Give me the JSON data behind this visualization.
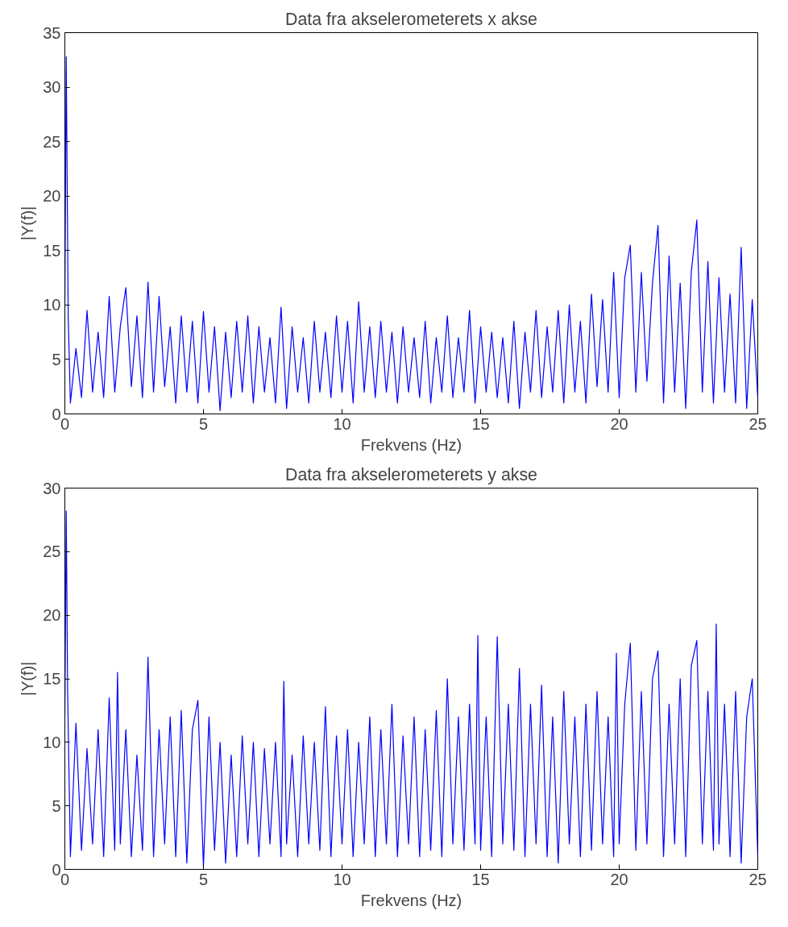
{
  "chart_data": [
    {
      "type": "line",
      "title": "Data fra akselerometerets x akse",
      "xlabel": "Frekvens (Hz)",
      "ylabel": "|Y(f)|",
      "xlim": [
        0,
        25
      ],
      "ylim": [
        0,
        35
      ],
      "xticks": [
        0,
        5,
        10,
        15,
        20,
        25
      ],
      "yticks": [
        0,
        5,
        10,
        15,
        20,
        25,
        30,
        35
      ],
      "series": [
        {
          "color": "#0000ff",
          "x": [
            0,
            0.05,
            0.12,
            0.2,
            0.4,
            0.6,
            0.8,
            1.0,
            1.2,
            1.4,
            1.6,
            1.8,
            2.0,
            2.2,
            2.4,
            2.6,
            2.8,
            3.0,
            3.2,
            3.4,
            3.6,
            3.8,
            4.0,
            4.2,
            4.4,
            4.6,
            4.8,
            5.0,
            5.2,
            5.4,
            5.6,
            5.8,
            6.0,
            6.2,
            6.4,
            6.6,
            6.8,
            7.0,
            7.2,
            7.4,
            7.6,
            7.8,
            8.0,
            8.2,
            8.4,
            8.6,
            8.8,
            9.0,
            9.2,
            9.4,
            9.6,
            9.8,
            10.0,
            10.2,
            10.4,
            10.6,
            10.8,
            11.0,
            11.2,
            11.4,
            11.6,
            11.8,
            12.0,
            12.2,
            12.4,
            12.6,
            12.8,
            13.0,
            13.2,
            13.4,
            13.6,
            13.8,
            14.0,
            14.2,
            14.4,
            14.6,
            14.8,
            15.0,
            15.2,
            15.4,
            15.6,
            15.8,
            16.0,
            16.2,
            16.4,
            16.6,
            16.8,
            17.0,
            17.2,
            17.4,
            17.6,
            17.8,
            18.0,
            18.2,
            18.4,
            18.6,
            18.8,
            19.0,
            19.2,
            19.4,
            19.6,
            19.8,
            20.0,
            20.2,
            20.4,
            20.6,
            20.8,
            21.0,
            21.2,
            21.4,
            21.6,
            21.8,
            22.0,
            22.2,
            22.4,
            22.6,
            22.8,
            23.0,
            23.2,
            23.4,
            23.6,
            23.8,
            24.0,
            24.2,
            24.4,
            24.6,
            24.8,
            25.0
          ],
          "values": [
            10,
            32.8,
            9,
            1,
            6,
            1.5,
            9.5,
            2,
            7.5,
            1.5,
            10.8,
            2,
            8,
            11.6,
            2.5,
            9,
            1.5,
            12.1,
            2,
            10.8,
            2.5,
            8,
            1,
            9,
            2,
            8.5,
            1,
            9.4,
            2,
            8,
            0.3,
            7.5,
            1.5,
            8.5,
            2,
            9,
            1,
            8,
            2,
            7,
            1,
            9.8,
            0.5,
            8,
            2,
            7,
            1,
            8.5,
            2,
            7.5,
            1.5,
            9,
            2,
            8.5,
            1,
            10.3,
            2,
            8,
            1.5,
            8.5,
            2,
            7.5,
            1,
            8,
            2,
            7,
            1.5,
            8.5,
            1,
            7,
            2,
            9,
            1.5,
            7,
            2,
            9.5,
            1,
            8,
            2,
            7.5,
            1.5,
            7,
            1,
            8.5,
            0.5,
            7.5,
            2,
            9.5,
            1.5,
            8,
            2,
            9.5,
            1,
            10,
            2,
            8.5,
            1,
            11,
            2.5,
            10.5,
            2,
            13,
            1.5,
            12.5,
            15.5,
            2,
            13,
            3,
            12,
            17.3,
            1,
            14.5,
            2,
            12,
            0.5,
            13,
            17.8,
            2,
            14,
            1,
            12.5,
            2,
            11,
            1,
            15.3,
            0.5,
            10.5,
            1.5
          ]
        }
      ]
    },
    {
      "type": "line",
      "title": "Data fra akselerometerets y akse",
      "xlabel": "Frekvens (Hz)",
      "ylabel": "|Y(f)|",
      "xlim": [
        0,
        25
      ],
      "ylim": [
        0,
        30
      ],
      "xticks": [
        0,
        5,
        10,
        15,
        20,
        25
      ],
      "yticks": [
        0,
        5,
        10,
        15,
        20,
        25,
        30
      ],
      "series": [
        {
          "color": "#0000ff",
          "x": [
            0,
            0.05,
            0.1,
            0.2,
            0.4,
            0.6,
            0.8,
            1.0,
            1.2,
            1.4,
            1.6,
            1.8,
            1.9,
            2.0,
            2.2,
            2.4,
            2.6,
            2.8,
            3.0,
            3.2,
            3.4,
            3.6,
            3.8,
            4.0,
            4.2,
            4.4,
            4.6,
            4.8,
            5.0,
            5.2,
            5.4,
            5.6,
            5.8,
            6.0,
            6.2,
            6.4,
            6.6,
            6.8,
            7.0,
            7.2,
            7.4,
            7.6,
            7.8,
            7.9,
            8.0,
            8.2,
            8.4,
            8.6,
            8.8,
            9.0,
            9.2,
            9.4,
            9.6,
            9.8,
            10.0,
            10.2,
            10.4,
            10.6,
            10.8,
            11.0,
            11.2,
            11.4,
            11.6,
            11.8,
            12.0,
            12.2,
            12.4,
            12.6,
            12.8,
            13.0,
            13.2,
            13.4,
            13.6,
            13.8,
            14.0,
            14.2,
            14.4,
            14.6,
            14.8,
            14.9,
            15.0,
            15.2,
            15.4,
            15.6,
            15.8,
            16.0,
            16.2,
            16.4,
            16.6,
            16.8,
            17.0,
            17.2,
            17.4,
            17.6,
            17.8,
            18.0,
            18.2,
            18.4,
            18.6,
            18.8,
            19.0,
            19.2,
            19.4,
            19.6,
            19.8,
            19.9,
            20.0,
            20.2,
            20.4,
            20.6,
            20.8,
            21.0,
            21.2,
            21.4,
            21.6,
            21.8,
            22.0,
            22.2,
            22.4,
            22.6,
            22.8,
            23.0,
            23.2,
            23.4,
            23.5,
            23.6,
            23.8,
            24.0,
            24.2,
            24.4,
            24.6,
            24.8,
            25.0
          ],
          "values": [
            12,
            28.2,
            14,
            1,
            11.5,
            1.5,
            9.5,
            2,
            11,
            1,
            13.5,
            1.5,
            15.5,
            2,
            11,
            1,
            9,
            1.5,
            16.7,
            1,
            11,
            2,
            12,
            1,
            12.5,
            0.5,
            11,
            13.3,
            0.2,
            12,
            1.5,
            10,
            0.5,
            9,
            1,
            10.5,
            2,
            10,
            1,
            9.5,
            2,
            10,
            1,
            14.8,
            2,
            9,
            1,
            10.5,
            2,
            10,
            1.5,
            12.8,
            1,
            10.5,
            2,
            11,
            1,
            10,
            2,
            12,
            1,
            11,
            2,
            13,
            1,
            10.5,
            2,
            12,
            1,
            11,
            1.5,
            12.5,
            1,
            15,
            2,
            12,
            1.5,
            13,
            2,
            18.4,
            1.5,
            12,
            1,
            18.3,
            2,
            13,
            1.5,
            15.8,
            1,
            13,
            2,
            14.5,
            1,
            12,
            0.5,
            14,
            2,
            12,
            1,
            13,
            1.5,
            14,
            2,
            12,
            1,
            17,
            2,
            13,
            17.8,
            1.5,
            14,
            2,
            15,
            17.2,
            1,
            13,
            2,
            15,
            1,
            16,
            18,
            2,
            14,
            1.5,
            19.3,
            2,
            13,
            1,
            14,
            0.5,
            12,
            15,
            1
          ]
        }
      ]
    }
  ]
}
